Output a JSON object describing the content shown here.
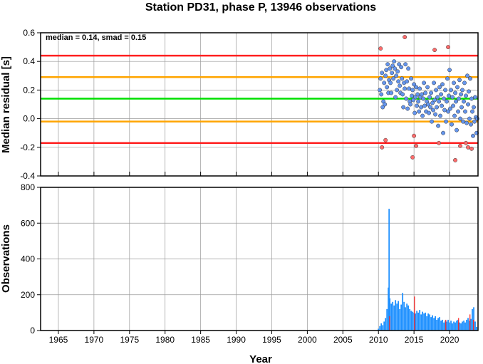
{
  "chart_data": [
    {
      "type": "scatter",
      "title": "Station PD31, phase P, 13946 observations",
      "xlabel": "",
      "ylabel": "Median residual [s]",
      "xlim": [
        1962.5,
        2024.0
      ],
      "ylim": [
        -0.4,
        0.6
      ],
      "yticks": [
        "-0.4",
        "-0.2",
        "0.0",
        "0.2",
        "0.4",
        "0.6"
      ],
      "grid": true,
      "annotation": "median = 0.14, smad = 0.15",
      "reference_lines": [
        {
          "y": 0.44,
          "color": "#ff2020"
        },
        {
          "y": 0.29,
          "color": "#ffa500"
        },
        {
          "y": 0.14,
          "color": "#00e000"
        },
        {
          "y": -0.02,
          "color": "#ffa500"
        },
        {
          "y": -0.17,
          "color": "#ff2020"
        }
      ],
      "series": [
        {
          "color": "#6495ed",
          "points": [
            [
              2010.2,
              0.2
            ],
            [
              2010.3,
              0.28
            ],
            [
              2010.4,
              0.17
            ],
            [
              2010.5,
              0.32
            ],
            [
              2010.6,
              0.08
            ],
            [
              2010.7,
              0.12
            ],
            [
              2010.8,
              0.25
            ],
            [
              2010.9,
              0.1
            ],
            [
              2011.0,
              0.3
            ],
            [
              2011.1,
              0.34
            ],
            [
              2011.2,
              0.22
            ],
            [
              2011.3,
              0.38
            ],
            [
              2011.4,
              0.18
            ],
            [
              2011.5,
              0.27
            ],
            [
              2011.6,
              0.35
            ],
            [
              2011.7,
              0.25
            ],
            [
              2011.8,
              0.18
            ],
            [
              2011.9,
              0.32
            ],
            [
              2012.0,
              0.37
            ],
            [
              2012.1,
              0.28
            ],
            [
              2012.2,
              0.4
            ],
            [
              2012.3,
              0.35
            ],
            [
              2012.4,
              0.15
            ],
            [
              2012.5,
              0.3
            ],
            [
              2012.6,
              0.2
            ],
            [
              2012.7,
              0.33
            ],
            [
              2012.8,
              0.26
            ],
            [
              2012.9,
              0.38
            ],
            [
              2013.0,
              0.23
            ],
            [
              2013.1,
              0.18
            ],
            [
              2013.2,
              0.36
            ],
            [
              2013.3,
              0.28
            ],
            [
              2013.4,
              0.17
            ],
            [
              2013.5,
              0.08
            ],
            [
              2013.6,
              0.25
            ],
            [
              2013.7,
              0.21
            ],
            [
              2013.8,
              0.38
            ],
            [
              2013.9,
              0.14
            ],
            [
              2014.0,
              0.26
            ],
            [
              2014.1,
              0.07
            ],
            [
              2014.2,
              0.35
            ],
            [
              2014.3,
              0.21
            ],
            [
              2014.4,
              0.12
            ],
            [
              2014.5,
              0.1
            ],
            [
              2014.6,
              0.28
            ],
            [
              2014.7,
              0.16
            ],
            [
              2014.8,
              0.2
            ],
            [
              2014.9,
              0.13
            ],
            [
              2015.0,
              0.24
            ],
            [
              2015.1,
              0.04
            ],
            [
              2015.2,
              0.15
            ],
            [
              2015.3,
              0.22
            ],
            [
              2015.4,
              0.09
            ],
            [
              2015.5,
              0.17
            ],
            [
              2015.6,
              0.12
            ],
            [
              2015.7,
              0.05
            ],
            [
              2015.8,
              0.21
            ],
            [
              2015.9,
              0.15
            ],
            [
              2016.0,
              0.08
            ],
            [
              2016.1,
              0.17
            ],
            [
              2016.2,
              0.02
            ],
            [
              2016.3,
              0.14
            ],
            [
              2016.4,
              0.25
            ],
            [
              2016.5,
              0.09
            ],
            [
              2016.6,
              0.18
            ],
            [
              2016.7,
              0.05
            ],
            [
              2016.8,
              0.12
            ],
            [
              2016.9,
              0.22
            ],
            [
              2017.0,
              0.1
            ],
            [
              2017.1,
              0.04
            ],
            [
              2017.2,
              0.15
            ],
            [
              2017.3,
              0.08
            ],
            [
              2017.4,
              0.18
            ],
            [
              2017.5,
              -0.02
            ],
            [
              2017.6,
              0.11
            ],
            [
              2017.7,
              0.06
            ],
            [
              2017.8,
              0.25
            ],
            [
              2017.9,
              0.13
            ],
            [
              2018.0,
              0.03
            ],
            [
              2018.1,
              0.2
            ],
            [
              2018.2,
              0.08
            ],
            [
              2018.3,
              0.15
            ],
            [
              2018.4,
              -0.05
            ],
            [
              2018.5,
              0.12
            ],
            [
              2018.6,
              0.22
            ],
            [
              2018.7,
              0.02
            ],
            [
              2018.8,
              0.17
            ],
            [
              2018.9,
              0.09
            ],
            [
              2019.0,
              0.24
            ],
            [
              2019.1,
              -0.1
            ],
            [
              2019.2,
              0.14
            ],
            [
              2019.3,
              0.06
            ],
            [
              2019.4,
              0.2
            ],
            [
              2019.5,
              -0.02
            ],
            [
              2019.6,
              0.12
            ],
            [
              2019.7,
              0.28
            ],
            [
              2019.8,
              0.05
            ],
            [
              2019.9,
              0.16
            ],
            [
              2020.0,
              0.34
            ],
            [
              2020.1,
              0.07
            ],
            [
              2020.2,
              0.2
            ],
            [
              2020.3,
              -0.04
            ],
            [
              2020.4,
              0.15
            ],
            [
              2020.5,
              0.09
            ],
            [
              2020.6,
              0.25
            ],
            [
              2020.7,
              0.02
            ],
            [
              2020.8,
              0.18
            ],
            [
              2020.9,
              0.12
            ],
            [
              2021.0,
              -0.08
            ],
            [
              2021.1,
              0.22
            ],
            [
              2021.2,
              0.05
            ],
            [
              2021.3,
              0.14
            ],
            [
              2021.4,
              0.27
            ],
            [
              2021.5,
              0.0
            ],
            [
              2021.6,
              0.17
            ],
            [
              2021.7,
              0.08
            ],
            [
              2021.8,
              0.2
            ],
            [
              2021.9,
              -0.02
            ],
            [
              2022.0,
              0.12
            ],
            [
              2022.1,
              0.25
            ],
            [
              2022.2,
              0.05
            ],
            [
              2022.3,
              0.16
            ],
            [
              2022.4,
              -0.03
            ],
            [
              2022.5,
              0.3
            ],
            [
              2022.6,
              0.1
            ],
            [
              2022.7,
              0.19
            ],
            [
              2022.8,
              0.0
            ],
            [
              2022.9,
              0.28
            ],
            [
              2023.0,
              -0.04
            ],
            [
              2023.1,
              0.14
            ],
            [
              2023.2,
              0.05
            ],
            [
              2023.3,
              -0.12
            ],
            [
              2023.4,
              0.08
            ],
            [
              2023.5,
              -0.02
            ],
            [
              2023.6,
              0.15
            ],
            [
              2023.7,
              0.01
            ],
            [
              2023.8,
              -0.1
            ],
            [
              2023.9,
              0.0
            ]
          ]
        },
        {
          "color": "#ff6b6b",
          "points": [
            [
              2010.3,
              0.49
            ],
            [
              2010.5,
              -0.2
            ],
            [
              2011.0,
              -0.15
            ],
            [
              2013.7,
              0.57
            ],
            [
              2014.8,
              -0.27
            ],
            [
              2015.0,
              -0.12
            ],
            [
              2015.3,
              -0.19
            ],
            [
              2017.9,
              0.48
            ],
            [
              2018.5,
              -0.17
            ],
            [
              2019.8,
              0.5
            ],
            [
              2020.8,
              -0.29
            ],
            [
              2021.5,
              -0.19
            ],
            [
              2022.3,
              -0.17
            ],
            [
              2022.6,
              -0.2
            ],
            [
              2023.1,
              -0.21
            ]
          ]
        }
      ]
    },
    {
      "type": "bar",
      "title": "",
      "xlabel": "Year",
      "ylabel": "Observations",
      "xlim": [
        1962.5,
        2024.0
      ],
      "ylim": [
        0,
        800
      ],
      "yticks": [
        "0",
        "200",
        "400",
        "600",
        "800"
      ],
      "xticks": [
        "1965",
        "1970",
        "1975",
        "1980",
        "1985",
        "1990",
        "1995",
        "2000",
        "2005",
        "2010",
        "2015",
        "2020"
      ],
      "grid": true,
      "series": [
        {
          "color": "#1e90ff",
          "x": [
            2010.0,
            2010.2,
            2010.4,
            2010.6,
            2010.8,
            2011.0,
            2011.2,
            2011.4,
            2011.5,
            2011.6,
            2011.8,
            2012.0,
            2012.2,
            2012.4,
            2012.6,
            2012.8,
            2013.0,
            2013.2,
            2013.4,
            2013.6,
            2013.8,
            2014.0,
            2014.2,
            2014.4,
            2014.6,
            2014.8,
            2015.0,
            2015.2,
            2015.4,
            2015.6,
            2015.8,
            2016.0,
            2016.2,
            2016.4,
            2016.6,
            2016.8,
            2017.0,
            2017.2,
            2017.4,
            2017.6,
            2017.8,
            2018.0,
            2018.2,
            2018.4,
            2018.6,
            2018.8,
            2019.0,
            2019.2,
            2019.4,
            2019.6,
            2019.8,
            2020.0,
            2020.2,
            2020.4,
            2020.6,
            2020.8,
            2021.0,
            2021.2,
            2021.4,
            2021.6,
            2021.8,
            2022.0,
            2022.2,
            2022.4,
            2022.6,
            2022.8,
            2023.0,
            2023.2,
            2023.4,
            2023.6,
            2023.8
          ],
          "values": [
            10,
            25,
            40,
            30,
            50,
            70,
            120,
            240,
            680,
            180,
            150,
            160,
            140,
            170,
            150,
            165,
            120,
            145,
            210,
            160,
            130,
            150,
            140,
            120,
            110,
            105,
            100,
            95,
            110,
            100,
            115,
            90,
            105,
            95,
            100,
            80,
            95,
            90,
            75,
            85,
            70,
            80,
            60,
            70,
            75,
            55,
            60,
            45,
            55,
            50,
            60,
            45,
            55,
            40,
            50,
            45,
            55,
            60,
            45,
            40,
            50,
            55,
            45,
            60,
            70,
            55,
            65,
            120,
            130,
            50,
            20
          ]
        },
        {
          "color": "#ff2020",
          "x": [
            2011.6,
            2015.1,
            2019.5,
            2021.3,
            2022.9,
            2023.4
          ],
          "values": [
            80,
            190,
            60,
            70,
            90,
            60
          ]
        }
      ]
    }
  ]
}
